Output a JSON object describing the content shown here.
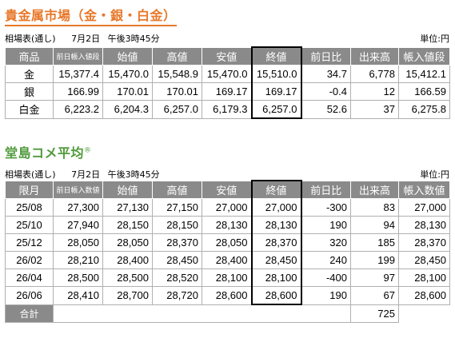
{
  "precious": {
    "title": "貴金属市場（金・銀・白金）",
    "session": "相場表(通し)",
    "date": "7月2日",
    "time": "午後3時45分",
    "unit": "単位:円",
    "headers": [
      "商品",
      "前日帳入値段",
      "始値",
      "高値",
      "安値",
      "終値",
      "前日比",
      "出来高",
      "帳入値段"
    ],
    "rows": [
      [
        "金",
        "15,377.4",
        "15,470.0",
        "15,548.9",
        "15,470.0",
        "15,510.0",
        "34.7",
        "6,778",
        "15,412.1"
      ],
      [
        "銀",
        "166.99",
        "170.01",
        "170.01",
        "169.17",
        "169.17",
        "-0.4",
        "12",
        "166.59"
      ],
      [
        "白金",
        "6,223.2",
        "6,204.3",
        "6,257.0",
        "6,179.3",
        "6,257.0",
        "52.6",
        "37",
        "6,275.8"
      ]
    ]
  },
  "rice": {
    "title": "堂島コメ平均",
    "mark": "®",
    "session": "相場表(通し)",
    "date": "7月2日",
    "time": "午後3時45分",
    "unit": "単位:円",
    "headers": [
      "限月",
      "前日帳入数値",
      "始値",
      "高値",
      "安値",
      "終値",
      "前日比",
      "出来高",
      "帳入数値"
    ],
    "rows": [
      [
        "25/08",
        "27,300",
        "27,130",
        "27,150",
        "27,000",
        "27,000",
        "-300",
        "83",
        "27,000"
      ],
      [
        "25/10",
        "27,940",
        "28,150",
        "28,150",
        "28,130",
        "28,130",
        "190",
        "94",
        "28,130"
      ],
      [
        "25/12",
        "28,050",
        "28,050",
        "28,370",
        "28,050",
        "28,370",
        "320",
        "185",
        "28,370"
      ],
      [
        "26/02",
        "28,210",
        "28,400",
        "28,450",
        "28,400",
        "28,450",
        "240",
        "199",
        "28,450"
      ],
      [
        "26/04",
        "28,500",
        "28,500",
        "28,520",
        "28,100",
        "28,100",
        "-400",
        "97",
        "28,100"
      ],
      [
        "26/06",
        "28,410",
        "28,700",
        "28,720",
        "28,600",
        "28,600",
        "190",
        "67",
        "28,600"
      ]
    ],
    "total_label": "合計",
    "total_volume": "725"
  }
}
